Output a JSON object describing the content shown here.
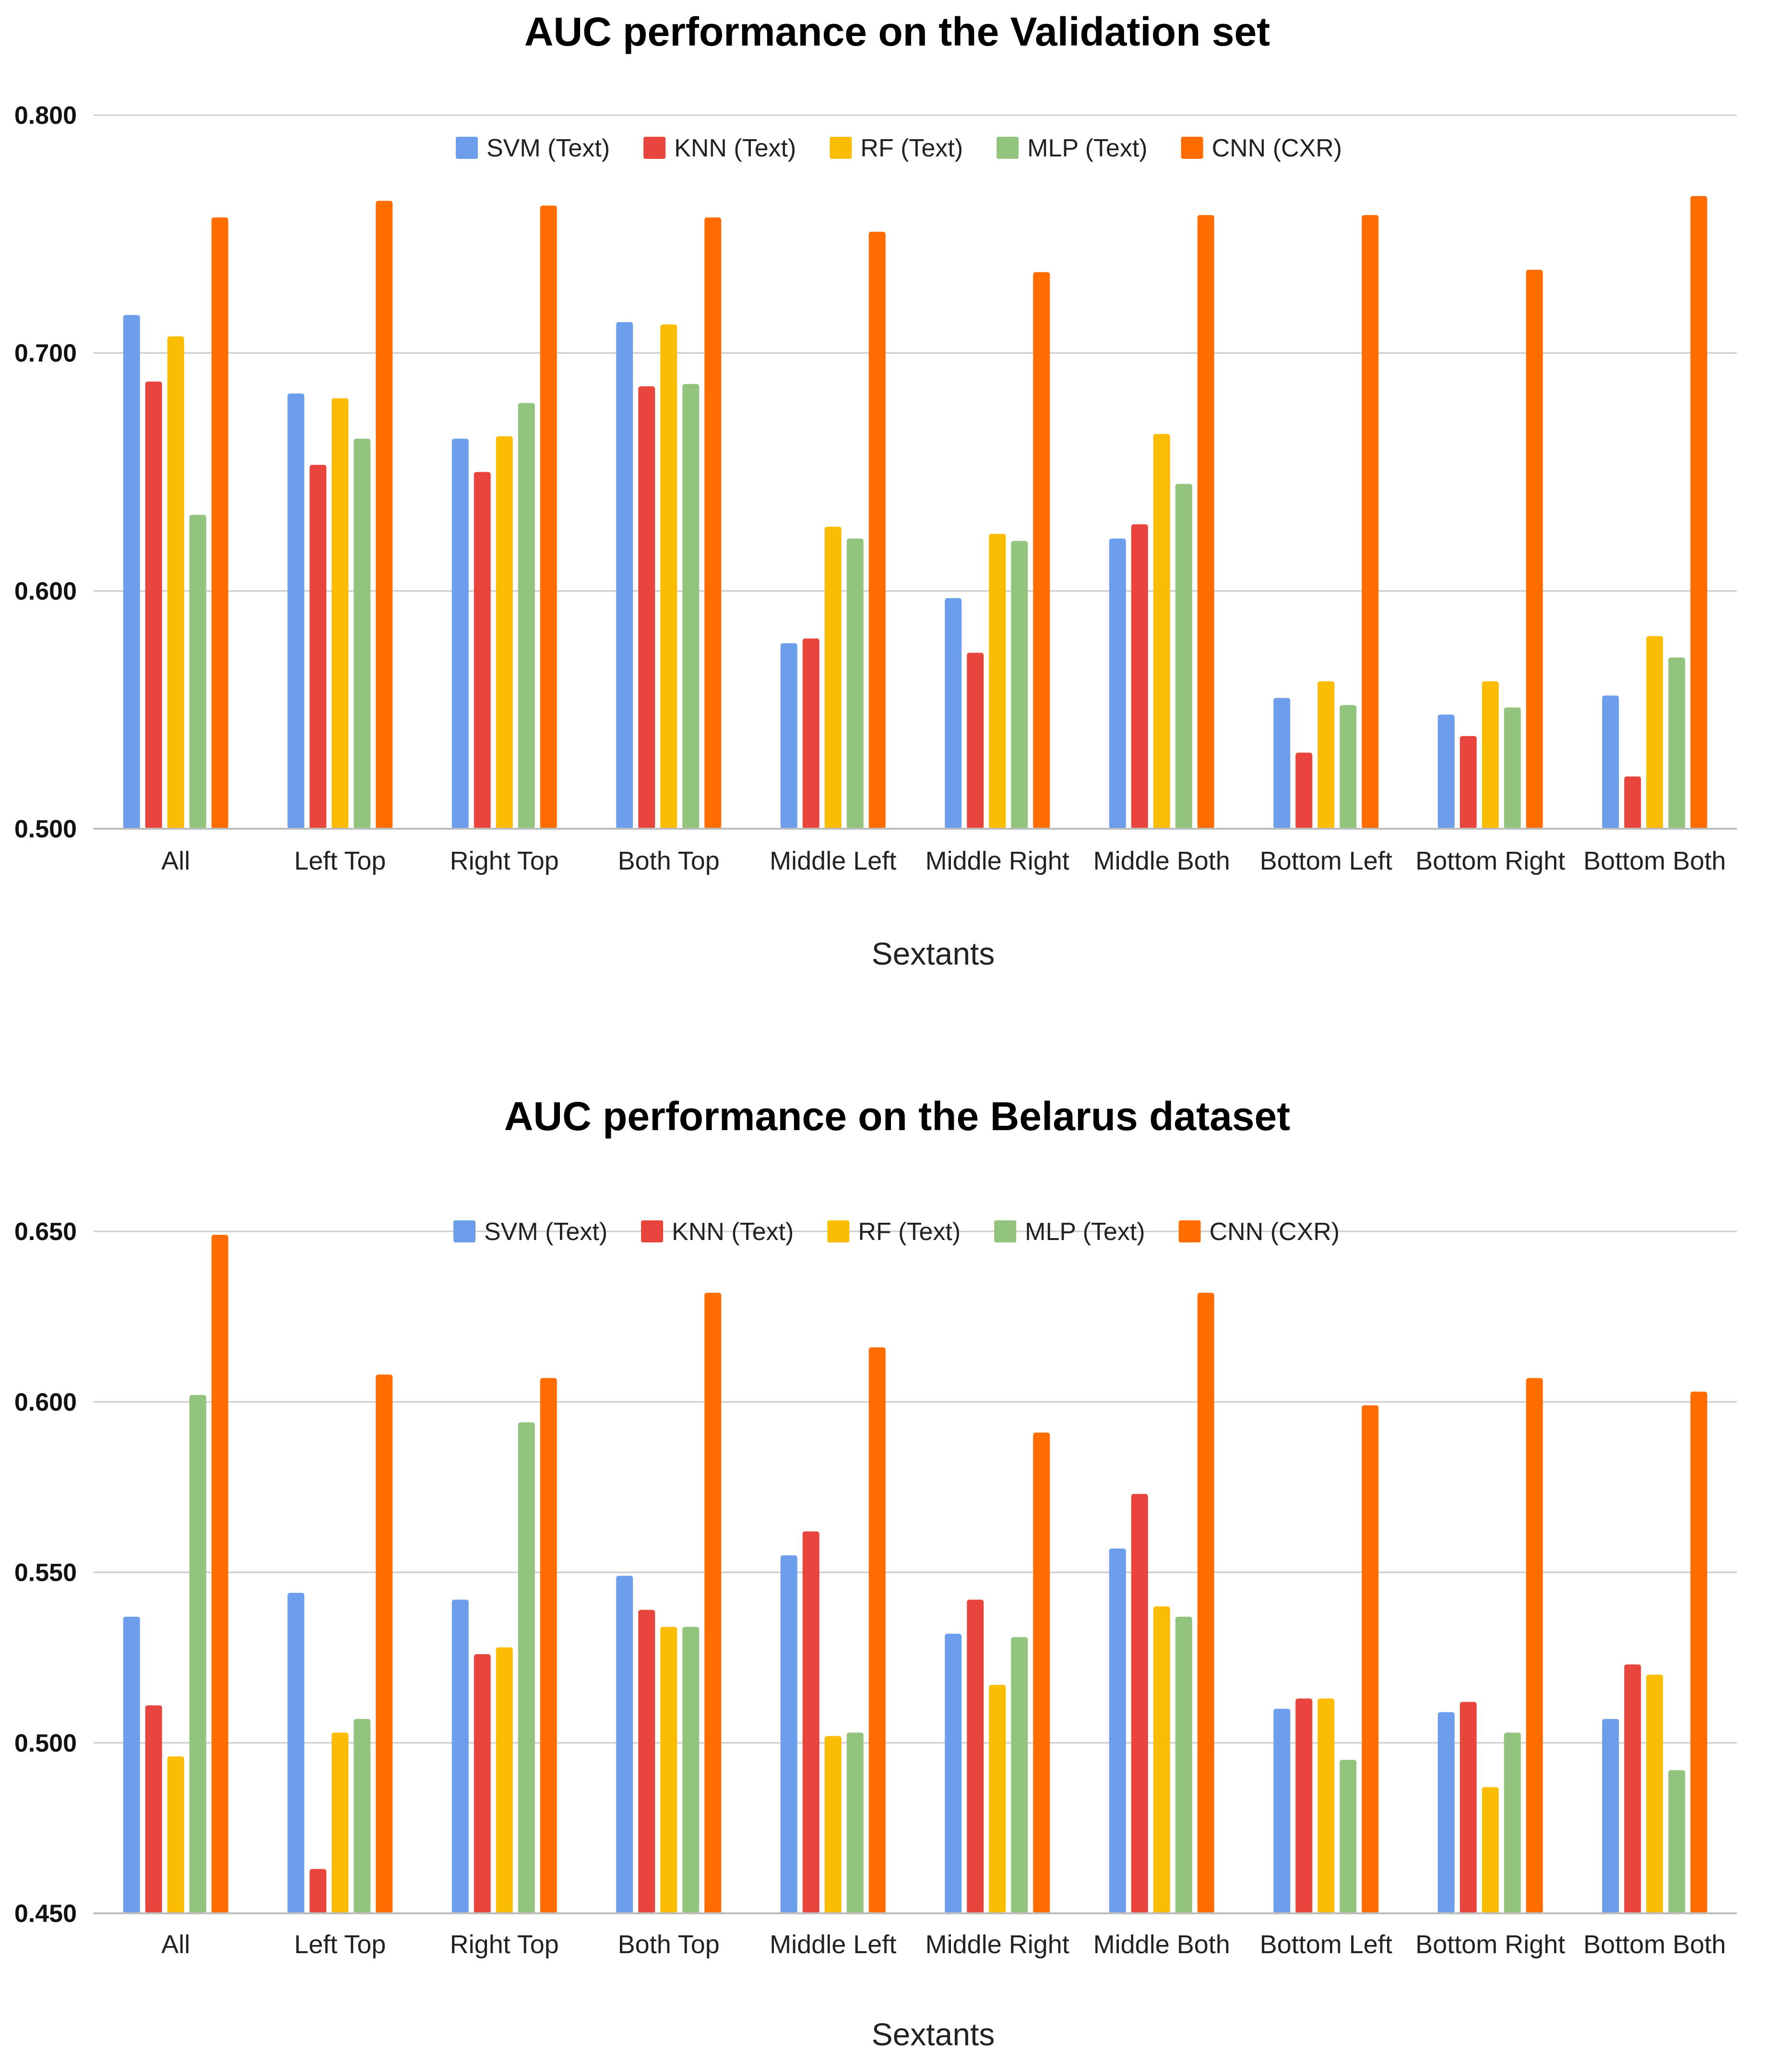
{
  "colors": {
    "svm": "#6d9eeb",
    "knn": "#e8453c",
    "rf": "#fbbc04",
    "mlp": "#93c47d",
    "cnn": "#ff6d01",
    "grid": "#cccccc"
  },
  "chart_data": [
    {
      "type": "bar",
      "title": "AUC performance on the Validation set",
      "xlabel": "Sextants",
      "ylabel": "",
      "ylim": [
        0.5,
        0.8
      ],
      "yticks": [
        "0.500",
        "0.600",
        "0.700",
        "0.800"
      ],
      "yticks_values": [
        0.5,
        0.6,
        0.7,
        0.8
      ],
      "legend_position": "top",
      "grid": true,
      "categories": [
        "All",
        "Left Top",
        "Right Top",
        "Both Top",
        "Middle Left",
        "Middle Right",
        "Middle Both",
        "Bottom Left",
        "Bottom Right",
        "Bottom Both"
      ],
      "series": [
        {
          "name": "SVM (Text)",
          "color_key": "svm",
          "values": [
            0.716,
            0.683,
            0.664,
            0.713,
            0.578,
            0.597,
            0.622,
            0.555,
            0.548,
            0.556
          ]
        },
        {
          "name": "KNN (Text)",
          "color_key": "knn",
          "values": [
            0.688,
            0.653,
            0.65,
            0.686,
            0.58,
            0.574,
            0.628,
            0.532,
            0.539,
            0.522
          ]
        },
        {
          "name": "RF (Text)",
          "color_key": "rf",
          "values": [
            0.707,
            0.681,
            0.665,
            0.712,
            0.627,
            0.624,
            0.666,
            0.562,
            0.562,
            0.581
          ]
        },
        {
          "name": "MLP (Text)",
          "color_key": "mlp",
          "values": [
            0.632,
            0.664,
            0.679,
            0.687,
            0.622,
            0.621,
            0.645,
            0.552,
            0.551,
            0.572
          ]
        },
        {
          "name": "CNN (CXR)",
          "color_key": "cnn",
          "values": [
            0.757,
            0.764,
            0.762,
            0.757,
            0.751,
            0.734,
            0.758,
            0.758,
            0.735,
            0.766
          ]
        }
      ]
    },
    {
      "type": "bar",
      "title": "AUC performance on the Belarus dataset",
      "xlabel": "Sextants",
      "ylabel": "",
      "ylim": [
        0.45,
        0.65
      ],
      "yticks": [
        "0.450",
        "0.500",
        "0.550",
        "0.600",
        "0.650"
      ],
      "yticks_values": [
        0.45,
        0.5,
        0.55,
        0.6,
        0.65
      ],
      "legend_position": "top",
      "grid": true,
      "categories": [
        "All",
        "Left Top",
        "Right Top",
        "Both Top",
        "Middle Left",
        "Middle Right",
        "Middle Both",
        "Bottom Left",
        "Bottom Right",
        "Bottom Both"
      ],
      "series": [
        {
          "name": "SVM (Text)",
          "color_key": "svm",
          "values": [
            0.537,
            0.544,
            0.542,
            0.549,
            0.555,
            0.532,
            0.557,
            0.51,
            0.509,
            0.507
          ]
        },
        {
          "name": "KNN (Text)",
          "color_key": "knn",
          "values": [
            0.511,
            0.463,
            0.526,
            0.539,
            0.562,
            0.542,
            0.573,
            0.513,
            0.512,
            0.523
          ]
        },
        {
          "name": "RF (Text)",
          "color_key": "rf",
          "values": [
            0.496,
            0.503,
            0.528,
            0.534,
            0.502,
            0.517,
            0.54,
            0.513,
            0.487,
            0.52
          ]
        },
        {
          "name": "MLP (Text)",
          "color_key": "mlp",
          "values": [
            0.602,
            0.507,
            0.594,
            0.534,
            0.503,
            0.531,
            0.537,
            0.495,
            0.503,
            0.492
          ]
        },
        {
          "name": "CNN (CXR)",
          "color_key": "cnn",
          "values": [
            0.649,
            0.608,
            0.607,
            0.632,
            0.616,
            0.591,
            0.632,
            0.599,
            0.607,
            0.603
          ]
        }
      ]
    }
  ]
}
